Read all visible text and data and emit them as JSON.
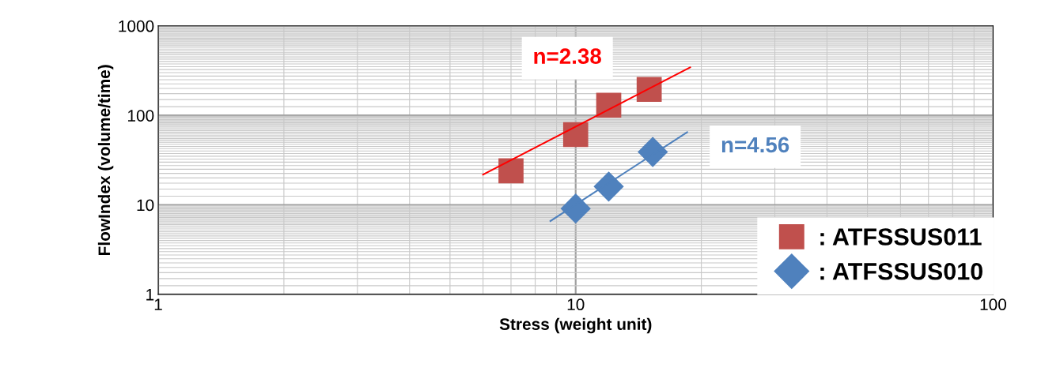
{
  "chart_data": {
    "type": "scatter",
    "xlabel": "Stress (weight unit)",
    "ylabel": "FlowIndex (volume/time)",
    "log": "xy",
    "xlim": [
      1,
      100
    ],
    "ylim": [
      1,
      1000
    ],
    "xticks": [
      1,
      10,
      100
    ],
    "yticks": [
      1,
      10,
      100,
      1000
    ],
    "grid": true,
    "legend": "bottom right",
    "series": [
      {
        "name": ": ATFSSUS011",
        "color": "#c0504d",
        "marker": "square",
        "x": [
          7,
          10,
          12,
          15
        ],
        "values": [
          24,
          61,
          130,
          195
        ]
      },
      {
        "name": ": ATFSSUS010",
        "color": "#4f81bd",
        "marker": "diamond",
        "x": [
          10,
          12,
          15.3
        ],
        "values": [
          9.1,
          16,
          39
        ]
      },
      {
        "type": "line",
        "color": "#ff0000",
        "marker": "none",
        "x": [
          6,
          18.8
        ],
        "values": [
          21.8,
          344
        ]
      },
      {
        "type": "line",
        "color": "#4f81bd",
        "marker": "none",
        "x": [
          8.7,
          18.5
        ],
        "values": [
          6.6,
          65
        ]
      }
    ],
    "annotations": [
      "n=2.38",
      "n=4.56"
    ]
  }
}
